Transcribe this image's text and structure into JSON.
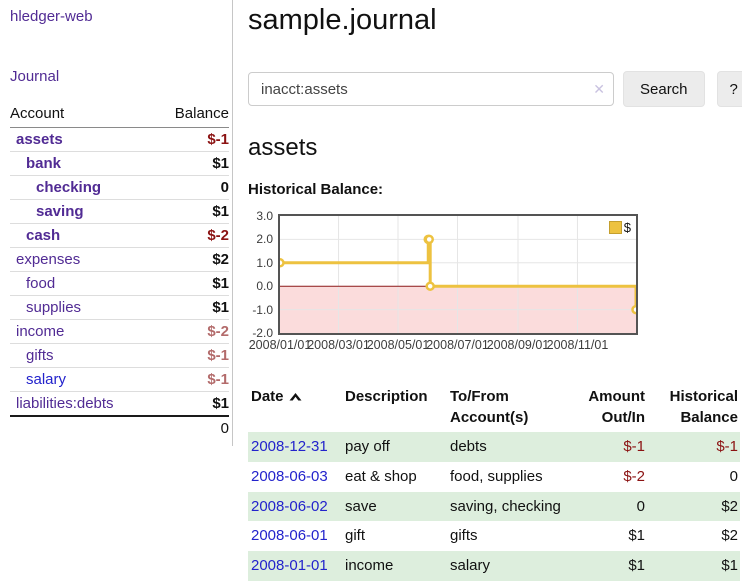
{
  "sidebar": {
    "app_title": "hledger-web",
    "nav_journal": "Journal",
    "accounts": {
      "col_account": "Account",
      "col_balance": "Balance",
      "rows": [
        {
          "name": "assets",
          "balance": "$-1"
        },
        {
          "name": "bank",
          "balance": "$1"
        },
        {
          "name": "checking",
          "balance": "0"
        },
        {
          "name": "saving",
          "balance": "$1"
        },
        {
          "name": "cash",
          "balance": "$-2"
        },
        {
          "name": "expenses",
          "balance": "$2"
        },
        {
          "name": "food",
          "balance": "$1"
        },
        {
          "name": "supplies",
          "balance": "$1"
        },
        {
          "name": "income",
          "balance": "$-2"
        },
        {
          "name": "gifts",
          "balance": "$-1"
        },
        {
          "name": "salary",
          "balance": "$-1"
        },
        {
          "name": "liabilities:debts",
          "balance": "$1"
        }
      ],
      "total": "0"
    }
  },
  "main": {
    "title": "sample.journal",
    "search": {
      "value": "inacct:assets",
      "clear_label": "✕",
      "button_label": "Search",
      "help_label": "?"
    },
    "account_heading": "assets",
    "chart_title": "Historical Balance:"
  },
  "chart_data": {
    "type": "line",
    "step": true,
    "title": "Historical Balance",
    "series": [
      {
        "name": "$",
        "color": "#edc240",
        "points": [
          [
            "2008-01-01",
            1
          ],
          [
            "2008-06-01",
            2
          ],
          [
            "2008-06-02",
            2
          ],
          [
            "2008-06-03",
            0
          ],
          [
            "2008-12-31",
            -1
          ]
        ]
      }
    ],
    "x_range": [
      "2008-01-01",
      "2008-12-31"
    ],
    "x_ticks": [
      "2008/01/01",
      "2008/03/01",
      "2008/05/01",
      "2008/07/01",
      "2008/09/01",
      "2008/11/01"
    ],
    "y_ticks": [
      "3.0",
      "2.0",
      "1.0",
      "0.0",
      "-1.0",
      "-2.0"
    ],
    "ylim": [
      -2,
      3
    ],
    "legend": {
      "label": "$",
      "position": "top-right"
    },
    "grid": true,
    "grid_color": "#e6e6e6",
    "zero_line_color": "#8b1a1a",
    "negative_fill": "#fbdcdc"
  },
  "register": {
    "headers": {
      "date": "Date",
      "description": "Description",
      "accounts_line1": "To/From",
      "accounts_line2": "Account(s)",
      "amount_line1": "Amount",
      "amount_line2": "Out/In",
      "balance_line1": "Historical",
      "balance_line2": "Balance"
    },
    "rows": [
      {
        "date": "2008-12-31",
        "description": "pay off",
        "accounts": "debts",
        "amount": "$-1",
        "balance": "$-1"
      },
      {
        "date": "2008-06-03",
        "description": "eat & shop",
        "accounts": "food, supplies",
        "amount": "$-2",
        "balance": "0"
      },
      {
        "date": "2008-06-02",
        "description": "save",
        "accounts": "saving, checking",
        "amount": "0",
        "balance": "$2"
      },
      {
        "date": "2008-06-01",
        "description": "gift",
        "accounts": "gifts",
        "amount": "$1",
        "balance": "$2"
      },
      {
        "date": "2008-01-01",
        "description": "income",
        "accounts": "salary",
        "amount": "$1",
        "balance": "$1"
      }
    ]
  },
  "colors": {
    "link_purple": "#512b94",
    "link_blue": "#2323cc",
    "negative_dark": "#8b1212",
    "negative_light": "#b36b6b",
    "row_stripe_green": "#ddeedd",
    "series_gold": "#edc240"
  }
}
